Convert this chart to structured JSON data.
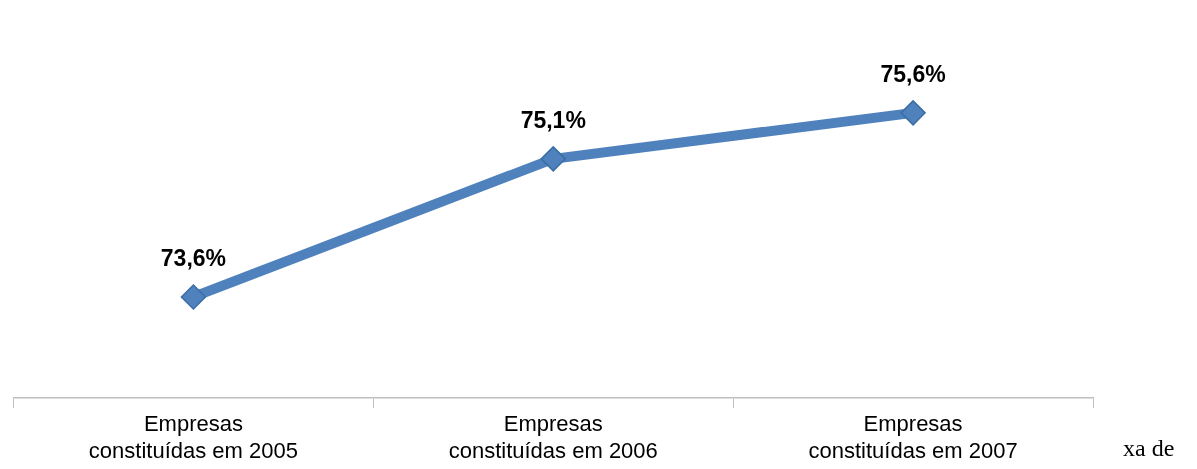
{
  "chart_data": {
    "type": "line",
    "categories": [
      "Empresas constituídas em 2005",
      "Empresas constituídas em 2006",
      "Empresas constituídas em 2007"
    ],
    "series": [
      {
        "color": "#4f81bd",
        "values": [
          73.6,
          75.1,
          75.6
        ],
        "value_labels": [
          "73,6%",
          "75,1%",
          "75,6%"
        ]
      }
    ],
    "tick_labels": "x",
    "grid": false,
    "legend": false,
    "marker": "diamond",
    "line_style": "solid",
    "annotations": [
      "xa de"
    ]
  }
}
